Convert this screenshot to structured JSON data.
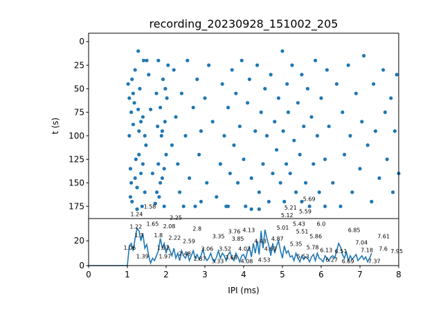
{
  "chart_data": [
    {
      "type": "scatter",
      "title": "recording_20230928_151002_205",
      "xlabel": "",
      "ylabel": "t (s)",
      "xlim": [
        0,
        8
      ],
      "ylim": [
        188,
        -9
      ],
      "yticks": [
        0,
        25,
        50,
        75,
        100,
        125,
        150,
        175
      ],
      "color": "#1f77b4",
      "points": [
        [
          1.02,
          45
        ],
        [
          1.05,
          60
        ],
        [
          1.08,
          135
        ],
        [
          1.1,
          150
        ],
        [
          1.12,
          170
        ],
        [
          1.15,
          88
        ],
        [
          1.18,
          65
        ],
        [
          1.2,
          30
        ],
        [
          1.22,
          125
        ],
        [
          1.25,
          155
        ],
        [
          1.28,
          72
        ],
        [
          1.3,
          95
        ],
        [
          1.32,
          50
        ],
        [
          1.35,
          140
        ],
        [
          1.38,
          175
        ],
        [
          1.4,
          80
        ],
        [
          1.42,
          20
        ],
        [
          1.45,
          160
        ],
        [
          1.05,
          100
        ],
        [
          1.1,
          75
        ],
        [
          1.15,
          55
        ],
        [
          1.2,
          145
        ],
        [
          1.25,
          178
        ],
        [
          1.3,
          120
        ],
        [
          1.35,
          85
        ],
        [
          1.4,
          130
        ],
        [
          1.08,
          165
        ],
        [
          1.12,
          40
        ],
        [
          1.28,
          10
        ],
        [
          1.45,
          100
        ],
        [
          1.75,
          55
        ],
        [
          1.78,
          90
        ],
        [
          1.8,
          130
        ],
        [
          1.82,
          165
        ],
        [
          1.85,
          70
        ],
        [
          1.88,
          100
        ],
        [
          1.9,
          145
        ],
        [
          1.92,
          40
        ],
        [
          1.95,
          175
        ],
        [
          1.97,
          85
        ],
        [
          2.0,
          120
        ],
        [
          2.02,
          60
        ],
        [
          1.8,
          20
        ],
        [
          1.85,
          150
        ],
        [
          1.9,
          95
        ],
        [
          1.95,
          135
        ],
        [
          1.72,
          172
        ],
        [
          2.05,
          25
        ],
        [
          1.98,
          50
        ],
        [
          1.76,
          160
        ],
        [
          1.6,
          72
        ],
        [
          1.65,
          140
        ],
        [
          1.55,
          35
        ],
        [
          2.2,
          30
        ],
        [
          2.25,
          80
        ],
        [
          2.3,
          130
        ],
        [
          2.35,
          160
        ],
        [
          2.4,
          55
        ],
        [
          2.5,
          100
        ],
        [
          2.55,
          20
        ],
        [
          2.6,
          145
        ],
        [
          2.7,
          70
        ],
        [
          2.75,
          175
        ],
        [
          2.8,
          40
        ],
        [
          2.85,
          120
        ],
        [
          2.9,
          95
        ],
        [
          3.0,
          60
        ],
        [
          3.05,
          150
        ],
        [
          3.1,
          25
        ],
        [
          3.2,
          85
        ],
        [
          3.3,
          165
        ],
        [
          3.4,
          130
        ],
        [
          3.45,
          45
        ],
        [
          3.5,
          100
        ],
        [
          3.55,
          175
        ],
        [
          3.6,
          70
        ],
        [
          3.65,
          140
        ],
        [
          3.7,
          30
        ],
        [
          3.75,
          110
        ],
        [
          3.8,
          55
        ],
        [
          3.85,
          150
        ],
        [
          3.9,
          90
        ],
        [
          3.95,
          20
        ],
        [
          4.0,
          125
        ],
        [
          4.05,
          175
        ],
        [
          4.1,
          65
        ],
        [
          4.15,
          40
        ],
        [
          4.2,
          145
        ],
        [
          4.3,
          95
        ],
        [
          4.35,
          25
        ],
        [
          4.4,
          160
        ],
        [
          4.45,
          75
        ],
        [
          4.5,
          130
        ],
        [
          4.55,
          50
        ],
        [
          4.6,
          100
        ],
        [
          4.65,
          170
        ],
        [
          4.7,
          35
        ],
        [
          4.75,
          140
        ],
        [
          4.8,
          85
        ],
        [
          4.85,
          115
        ],
        [
          4.9,
          60
        ],
        [
          4.95,
          150
        ],
        [
          5.0,
          10
        ],
        [
          5.02,
          95
        ],
        [
          5.05,
          170
        ],
        [
          5.1,
          130
        ],
        [
          5.12,
          45
        ],
        [
          5.15,
          75
        ],
        [
          5.2,
          140
        ],
        [
          5.25,
          25
        ],
        [
          5.3,
          105
        ],
        [
          5.35,
          160
        ],
        [
          5.4,
          65
        ],
        [
          5.45,
          120
        ],
        [
          5.5,
          35
        ],
        [
          5.55,
          90
        ],
        [
          5.6,
          150
        ],
        [
          5.65,
          50
        ],
        [
          5.7,
          175
        ],
        [
          5.75,
          80
        ],
        [
          5.8,
          130
        ],
        [
          5.85,
          20
        ],
        [
          5.9,
          100
        ],
        [
          5.95,
          160
        ],
        [
          6.0,
          60
        ],
        [
          6.1,
          125
        ],
        [
          6.15,
          30
        ],
        [
          6.2,
          90
        ],
        [
          6.3,
          150
        ],
        [
          6.4,
          45
        ],
        [
          6.5,
          175
        ],
        [
          6.55,
          75
        ],
        [
          6.6,
          120
        ],
        [
          6.7,
          25
        ],
        [
          6.75,
          100
        ],
        [
          6.8,
          160
        ],
        [
          6.9,
          55
        ],
        [
          7.0,
          135
        ],
        [
          7.05,
          85
        ],
        [
          7.1,
          15
        ],
        [
          7.2,
          110
        ],
        [
          7.3,
          170
        ],
        [
          7.35,
          45
        ],
        [
          7.4,
          95
        ],
        [
          7.5,
          145
        ],
        [
          7.6,
          30
        ],
        [
          7.65,
          75
        ],
        [
          7.7,
          125
        ],
        [
          7.8,
          60
        ],
        [
          7.85,
          160
        ],
        [
          7.9,
          95
        ],
        [
          7.95,
          35
        ],
        [
          8.0,
          140
        ],
        [
          1.5,
          20
        ],
        [
          1.48,
          110
        ],
        [
          2.15,
          110
        ],
        [
          3.6,
          175
        ],
        [
          4.2,
          178
        ],
        [
          4.4,
          178
        ],
        [
          5.5,
          170
        ],
        [
          6.1,
          175
        ],
        [
          2.45,
          175
        ],
        [
          2.9,
          170
        ]
      ]
    },
    {
      "type": "line",
      "xlabel": "IPI (ms)",
      "ylabel": "",
      "xlim": [
        0,
        8
      ],
      "ylim": [
        0,
        38
      ],
      "xticks": [
        0,
        1,
        2,
        3,
        4,
        5,
        6,
        7,
        8
      ],
      "yticks": [
        0,
        20
      ],
      "x_start": 0,
      "x_step": 0.05,
      "values": [
        0,
        0,
        0,
        0,
        0,
        0,
        0,
        0,
        0,
        0,
        0,
        0,
        0,
        0,
        0,
        0,
        0,
        0,
        0,
        0,
        0,
        16,
        18,
        12,
        22,
        30,
        28,
        20,
        26,
        14,
        17,
        8,
        2,
        6,
        4,
        8,
        12,
        22,
        14,
        18,
        10,
        16,
        12,
        8,
        14,
        6,
        10,
        4,
        12,
        8,
        6,
        10,
        4,
        8,
        12,
        6,
        9,
        5,
        8,
        13,
        7,
        4,
        6,
        10,
        5,
        3,
        7,
        12,
        6,
        10,
        8,
        4,
        9,
        11,
        6,
        4,
        10,
        7,
        3,
        8,
        9,
        5,
        12,
        15,
        7,
        18,
        10,
        20,
        9,
        28,
        14,
        29,
        22,
        16,
        8,
        18,
        10,
        16,
        20,
        12,
        6,
        16,
        10,
        12,
        7,
        8,
        4,
        10,
        6,
        3,
        8,
        5,
        7,
        6,
        3,
        7,
        9,
        4,
        10,
        6,
        5,
        3,
        8,
        6,
        4,
        7,
        8,
        6,
        12,
        18,
        15,
        9,
        6,
        11,
        4,
        8,
        5,
        7,
        9,
        4,
        6,
        8,
        5,
        7,
        3,
        6,
        10
      ],
      "peak_labels": [
        [
          1.06,
          18,
          "1.06"
        ],
        [
          1.22,
          30,
          "1.22"
        ],
        [
          1.24,
          30,
          "1.24"
        ],
        [
          1.3,
          28,
          "1.3"
        ],
        [
          1.39,
          16,
          "1.39"
        ],
        [
          1.58,
          6,
          "1.58"
        ],
        [
          1.65,
          7,
          "1.65"
        ],
        [
          1.8,
          23,
          "1.8"
        ],
        [
          1.92,
          18,
          "1.92"
        ],
        [
          1.97,
          16,
          "1.97"
        ],
        [
          2.08,
          15,
          "2.08"
        ],
        [
          2.22,
          11,
          "2.22"
        ],
        [
          2.25,
          7,
          "2.25"
        ],
        [
          2.48,
          8,
          "2.48"
        ],
        [
          2.59,
          8,
          "2.59"
        ],
        [
          2.8,
          8,
          "2.8"
        ],
        [
          2.87,
          9,
          "2.87"
        ],
        [
          3.06,
          12,
          "3.06"
        ],
        [
          3.33,
          7,
          "3.33"
        ],
        [
          3.35,
          7,
          "3.35"
        ],
        [
          3.52,
          12,
          "3.52"
        ],
        [
          3.68,
          10,
          "3.68"
        ],
        [
          3.76,
          6,
          "3.76"
        ],
        [
          3.85,
          10,
          "3.85"
        ],
        [
          4.02,
          7,
          "4.02"
        ],
        [
          4.08,
          7,
          "4.08"
        ],
        [
          4.13,
          7,
          "4.13"
        ],
        [
          4.43,
          13,
          "4.43"
        ],
        [
          4.53,
          13,
          "4.53"
        ],
        [
          4.69,
          17,
          "4.69"
        ],
        [
          4.87,
          20,
          "4.87"
        ],
        [
          5.01,
          29,
          "5.01"
        ],
        [
          5.12,
          29,
          "5.12"
        ],
        [
          5.21,
          15,
          "5.21"
        ],
        [
          5.35,
          16,
          "5.35"
        ],
        [
          5.51,
          16,
          "5.51"
        ],
        [
          5.53,
          16,
          "5.53"
        ],
        [
          5.43,
          12,
          "5.43"
        ],
        [
          5.59,
          12,
          "5.59"
        ],
        [
          5.69,
          12,
          "5.69"
        ],
        [
          5.78,
          8,
          "5.78"
        ],
        [
          5.86,
          7,
          "5.86"
        ],
        [
          6.0,
          7,
          "6.0"
        ],
        [
          6.13,
          6,
          "6.13"
        ],
        [
          6.27,
          8,
          "6.27"
        ],
        [
          6.51,
          10,
          "6.51"
        ],
        [
          6.69,
          7,
          "6.69"
        ],
        [
          6.85,
          7,
          "6.85"
        ],
        [
          7.04,
          17,
          "7.04"
        ],
        [
          7.18,
          11,
          "7.18"
        ],
        [
          7.37,
          7,
          "7.37"
        ],
        [
          7.6,
          7,
          "7.6"
        ],
        [
          7.61,
          7,
          "7.61"
        ],
        [
          7.95,
          10,
          "7.95"
        ]
      ]
    }
  ]
}
